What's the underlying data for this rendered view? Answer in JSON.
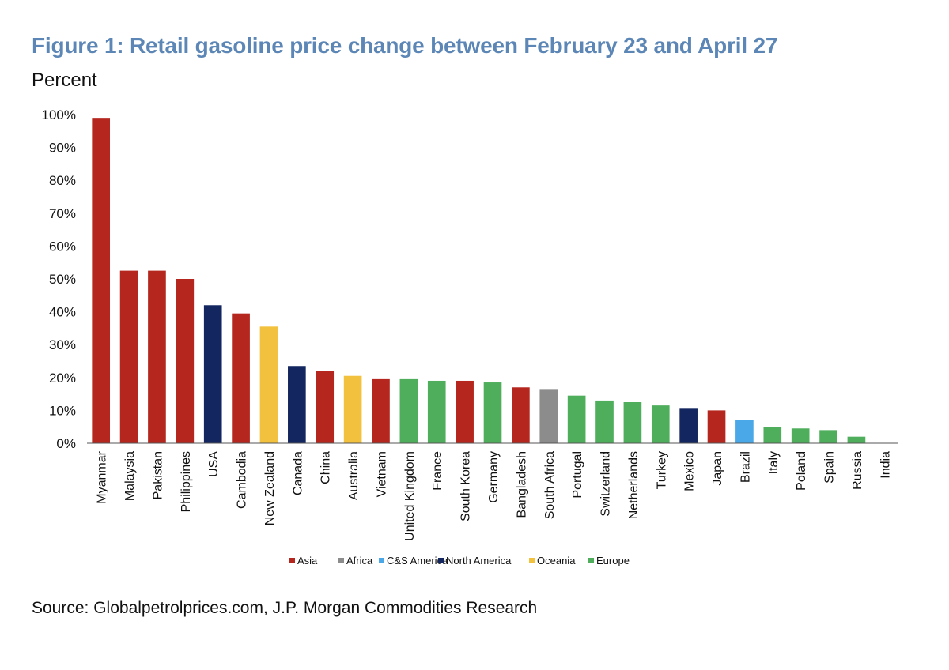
{
  "chart_data": {
    "type": "bar",
    "title": "Figure 1: Retail gasoline price change between February 23 and April 27",
    "ylabel": "Percent",
    "ylim": [
      0,
      100
    ],
    "yticks": [
      "0%",
      "10%",
      "20%",
      "30%",
      "40%",
      "50%",
      "60%",
      "70%",
      "80%",
      "90%",
      "100%"
    ],
    "grid": false,
    "legend_position": "bottom",
    "legend": [
      {
        "name": "Asia",
        "color": "#b5261e"
      },
      {
        "name": "Africa",
        "color": "#8c8c8c"
      },
      {
        "name": "C&S America",
        "color": "#4aa8e8"
      },
      {
        "name": "North America",
        "color": "#13265f"
      },
      {
        "name": "Oceania",
        "color": "#f2c13e"
      },
      {
        "name": "Europe",
        "color": "#4eae5b"
      }
    ],
    "categories": [
      "Myanmar",
      "Malaysia",
      "Pakistan",
      "Philippines",
      "USA",
      "Cambodia",
      "New Zealand",
      "Canada",
      "China",
      "Australia",
      "Vietnam",
      "United Kingdom",
      "France",
      "South Korea",
      "Germany",
      "Bangladesh",
      "South Africa",
      "Portugal",
      "Switzerland",
      "Netherlands",
      "Turkey",
      "Mexico",
      "Japan",
      "Brazil",
      "Italy",
      "Poland",
      "Spain",
      "Russia",
      "India"
    ],
    "values": [
      99,
      52.5,
      52.5,
      50,
      42,
      39.5,
      35.5,
      23.5,
      22,
      20.5,
      19.5,
      19.5,
      19,
      19,
      18.5,
      17,
      16.5,
      14.5,
      13,
      12.5,
      11.5,
      10.5,
      10,
      7,
      5,
      4.5,
      4,
      2,
      0
    ],
    "regions": [
      "Asia",
      "Asia",
      "Asia",
      "Asia",
      "North America",
      "Asia",
      "Oceania",
      "North America",
      "Asia",
      "Oceania",
      "Asia",
      "Europe",
      "Europe",
      "Asia",
      "Europe",
      "Asia",
      "Africa",
      "Europe",
      "Europe",
      "Europe",
      "Europe",
      "North America",
      "Asia",
      "C&S America",
      "Europe",
      "Europe",
      "Europe",
      "Europe",
      "Asia"
    ]
  },
  "source": "Source: Globalpetrolprices.com, J.P. Morgan Commodities Research"
}
